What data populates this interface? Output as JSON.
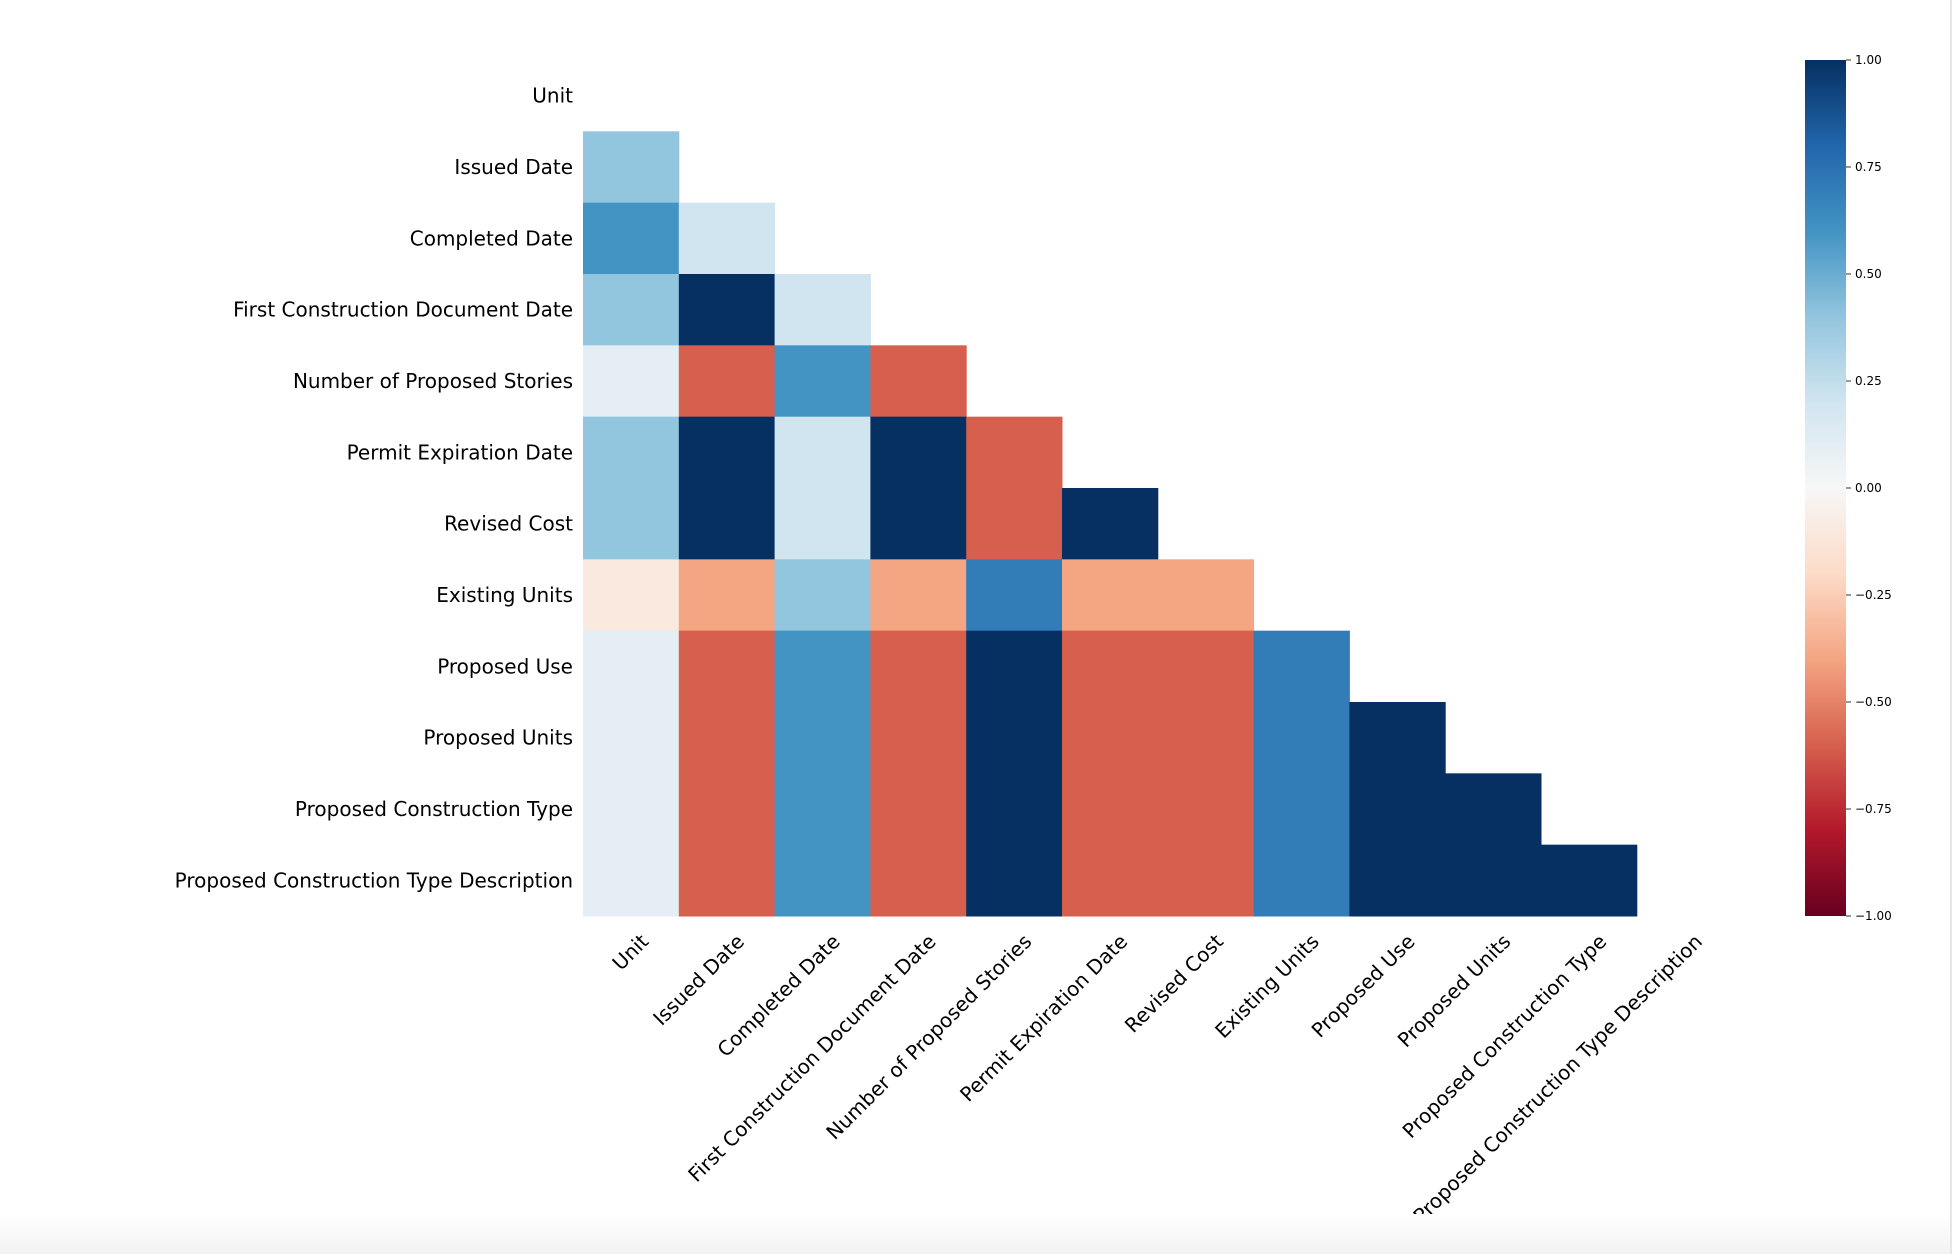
{
  "chart_data": {
    "type": "heatmap",
    "title": "",
    "colormap": "RdBu",
    "vmin": -1,
    "vmax": 1,
    "mask": "upper-triangle-including-diagonal",
    "labels": [
      "Unit",
      "Issued Date",
      "Completed Date",
      "First Construction Document Date",
      "Number of Proposed Stories",
      "Permit Expiration Date",
      "Revised Cost",
      "Existing Units",
      "Proposed Use",
      "Proposed Units",
      "Proposed Construction Type",
      "Proposed Construction Type Description"
    ],
    "values": [
      [],
      [
        0.4
      ],
      [
        0.6,
        0.2
      ],
      [
        0.4,
        1.0,
        0.2
      ],
      [
        0.1,
        -0.6,
        0.6,
        -0.6
      ],
      [
        0.4,
        1.0,
        0.2,
        1.0,
        -0.6
      ],
      [
        0.4,
        1.0,
        0.2,
        1.0,
        -0.6,
        1.0
      ],
      [
        -0.1,
        -0.4,
        0.4,
        -0.4,
        0.7,
        -0.4,
        -0.4
      ],
      [
        0.1,
        -0.6,
        0.6,
        -0.6,
        1.0,
        -0.6,
        -0.6,
        0.7
      ],
      [
        0.1,
        -0.6,
        0.6,
        -0.6,
        1.0,
        -0.6,
        -0.6,
        0.7,
        1.0
      ],
      [
        0.1,
        -0.6,
        0.6,
        -0.6,
        1.0,
        -0.6,
        -0.6,
        0.7,
        1.0,
        1.0
      ],
      [
        0.1,
        -0.6,
        0.6,
        -0.6,
        1.0,
        -0.6,
        -0.6,
        0.7,
        1.0,
        1.0,
        1.0
      ]
    ],
    "colorbar": {
      "ticks": [
        1.0,
        0.75,
        0.5,
        0.25,
        0.0,
        -0.25,
        -0.5,
        -0.75,
        -1.0
      ],
      "tick_labels": [
        "1.00",
        "0.75",
        "0.50",
        "0.25",
        "0.00",
        "−0.25",
        "−0.50",
        "−0.75",
        "−1.00"
      ]
    },
    "grid": false
  }
}
